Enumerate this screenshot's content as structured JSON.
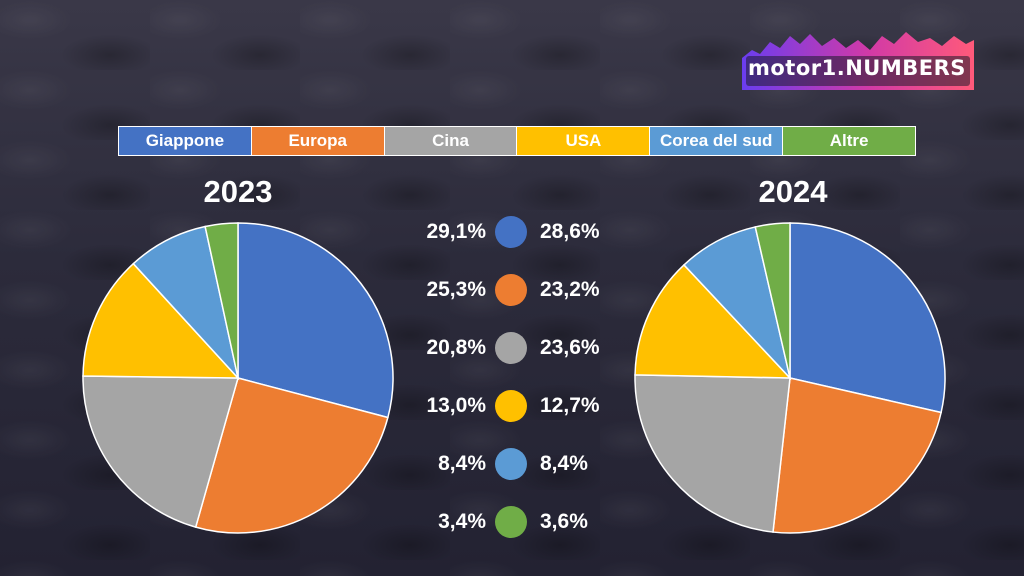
{
  "brand": {
    "logo_text": "motor1.NUMBERS",
    "logo_gradient": [
      "#6a3df0",
      "#d23aa6",
      "#ff5a7a"
    ]
  },
  "legend": [
    {
      "label": "Giappone",
      "color": "#4472c4"
    },
    {
      "label": "Europa",
      "color": "#ed7d31"
    },
    {
      "label": "Cina",
      "color": "#a5a5a5"
    },
    {
      "label": "USA",
      "color": "#ffc000"
    },
    {
      "label": "Corea del sud",
      "color": "#5b9bd5"
    },
    {
      "label": "Altre",
      "color": "#70ad47"
    }
  ],
  "chart_data": [
    {
      "type": "pie",
      "title": "2023",
      "categories": [
        "Giappone",
        "Europa",
        "Cina",
        "USA",
        "Corea del sud",
        "Altre"
      ],
      "values": [
        29.1,
        25.3,
        20.8,
        13.0,
        8.4,
        3.4
      ],
      "value_labels": [
        "29,1%",
        "25,3%",
        "20,8%",
        "13,0%",
        "8,4%",
        "3,4%"
      ],
      "colors": [
        "#4472c4",
        "#ed7d31",
        "#a5a5a5",
        "#ffc000",
        "#5b9bd5",
        "#70ad47"
      ]
    },
    {
      "type": "pie",
      "title": "2024",
      "categories": [
        "Giappone",
        "Europa",
        "Cina",
        "USA",
        "Corea del sud",
        "Altre"
      ],
      "values": [
        28.6,
        23.2,
        23.6,
        12.7,
        8.4,
        3.6
      ],
      "value_labels": [
        "28,6%",
        "23,2%",
        "23,6%",
        "12,7%",
        "8,4%",
        "3,6%"
      ],
      "colors": [
        "#4472c4",
        "#ed7d31",
        "#a5a5a5",
        "#ffc000",
        "#5b9bd5",
        "#70ad47"
      ]
    }
  ]
}
